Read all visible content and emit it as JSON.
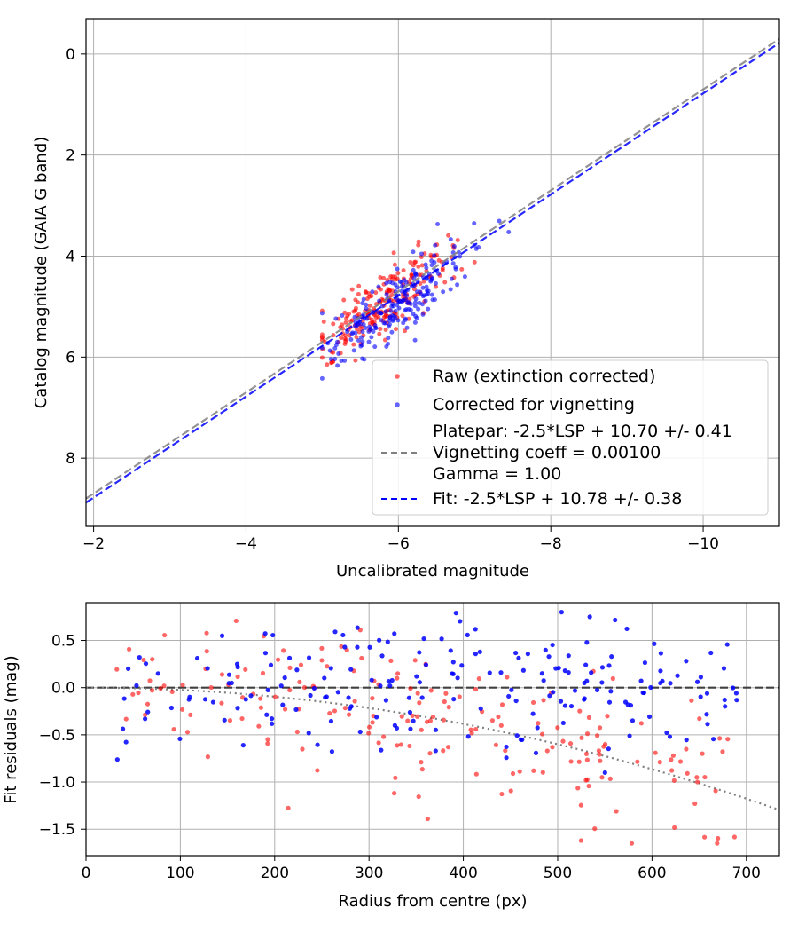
{
  "chart_data": [
    {
      "type": "scatter",
      "title": "",
      "xlabel": "Uncalibrated magnitude",
      "ylabel": "Catalog magnitude (GAIA G band)",
      "xlim": [
        -1.9,
        -11.0
      ],
      "ylim": [
        9.35,
        -0.7
      ],
      "x_inverted": true,
      "y_inverted": true,
      "xticks": [
        -2,
        -4,
        -6,
        -8,
        -10
      ],
      "xtick_labels": [
        "−2",
        "−4",
        "−6",
        "−8",
        "−10"
      ],
      "yticks": [
        0,
        2,
        4,
        6,
        8
      ],
      "ytick_labels": [
        "0",
        "2",
        "4",
        "6",
        "8"
      ],
      "grid": true,
      "legend_position": "lower-right",
      "series": [
        {
          "name": "Raw (extinction corrected)",
          "kind": "points",
          "color": "#ff0000",
          "n": 220,
          "x_center": -5.8,
          "x_spread": 0.45,
          "y_intercept": 10.74,
          "y_spread": 0.33,
          "x_range": [
            -5.0,
            -7.0
          ]
        },
        {
          "name": "Corrected for vignetting",
          "kind": "points",
          "color": "#0000ff",
          "n": 220,
          "x_center": -6.0,
          "x_spread": 0.5,
          "y_intercept": 10.9,
          "y_spread": 0.3,
          "x_range": [
            -5.0,
            -7.7
          ]
        },
        {
          "name": "Platepar: -2.5*LSP + 10.70 +/- 0.41\nVignetting coeff = 0.00100\nGamma = 1.00",
          "kind": "line",
          "color": "#808080",
          "dash": true,
          "slope": 1.0,
          "intercept": 10.7
        },
        {
          "name": "Fit: -2.5*LSP + 10.78 +/- 0.38",
          "kind": "line",
          "color": "#0000ff",
          "dash": true,
          "slope": 1.0,
          "intercept": 10.78
        }
      ]
    },
    {
      "type": "scatter",
      "title": "",
      "xlabel": "Radius from centre (px)",
      "ylabel": "Fit residuals (mag)",
      "xlim": [
        0,
        735
      ],
      "ylim": [
        -1.78,
        0.9
      ],
      "xticks": [
        0,
        100,
        200,
        300,
        400,
        500,
        600,
        700
      ],
      "xtick_labels": [
        "0",
        "100",
        "200",
        "300",
        "400",
        "500",
        "600",
        "700"
      ],
      "yticks": [
        0.5,
        0.0,
        -0.5,
        -1.0,
        -1.5
      ],
      "ytick_labels": [
        "0.5",
        "0.0",
        "−0.5",
        "−1.0",
        "−1.5"
      ],
      "grid": true,
      "reference_line": {
        "y": 0.0,
        "color": "#404040",
        "dash": true
      },
      "vignetting_curve": {
        "color": "#808080",
        "coeff": 0.001,
        "description": "dotted"
      },
      "series": [
        {
          "name": "Raw",
          "kind": "points",
          "color": "#ff0000",
          "n": 200,
          "r_range": [
            32,
            690
          ],
          "spread": 0.38
        },
        {
          "name": "Corrected",
          "kind": "points",
          "color": "#0000ff",
          "n": 200,
          "r_range": [
            32,
            690
          ],
          "spread": 0.35
        }
      ]
    }
  ]
}
